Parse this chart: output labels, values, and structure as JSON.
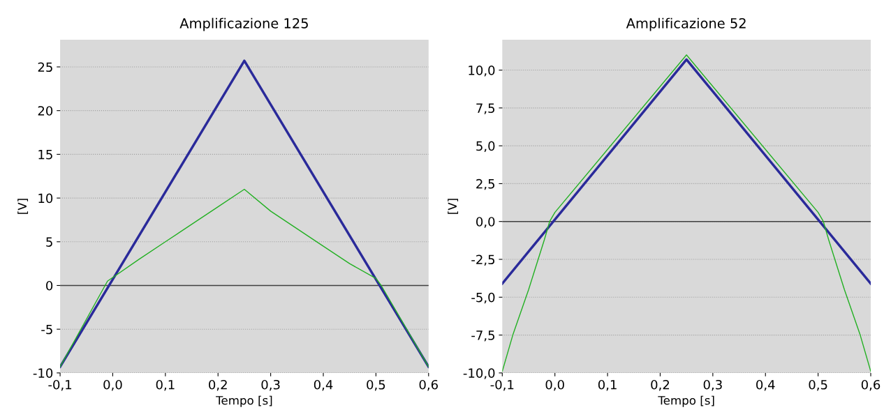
{
  "chart_data": [
    {
      "type": "line",
      "title": "Amplificazione 125",
      "xlabel": "Tempo [s]",
      "ylabel": "[V]",
      "xlim": [
        -0.1,
        0.6
      ],
      "ylim": [
        -10,
        28.1
      ],
      "xticks": [
        {
          "value": -0.1,
          "label": "-0,1"
        },
        {
          "value": 0,
          "label": "0,0"
        },
        {
          "value": 0.1,
          "label": "0,1"
        },
        {
          "value": 0.2,
          "label": "0,2"
        },
        {
          "value": 0.3,
          "label": "0,3"
        },
        {
          "value": 0.4,
          "label": "0,4"
        },
        {
          "value": 0.5,
          "label": "0,5"
        },
        {
          "value": 0.6,
          "label": "0,6"
        }
      ],
      "yticks": [
        -10,
        -5,
        0,
        5,
        10,
        15,
        20,
        25
      ],
      "grid": "y",
      "ref_lines": [
        {
          "axis": "y",
          "value": 0,
          "color": "#404040"
        }
      ],
      "series": [
        {
          "color": "#2a2a9a",
          "x": [
            -0.1,
            0.25,
            0.6
          ],
          "values": [
            -9.3,
            25.7,
            -9.3
          ]
        },
        {
          "color": "#22b022",
          "x": [
            -0.1,
            -0.01,
            0.05,
            0.1,
            0.2,
            0.25,
            0.3,
            0.4,
            0.45,
            0.5,
            0.51,
            0.6
          ],
          "values": [
            -9.3,
            0.5,
            3,
            5,
            9,
            11,
            8.5,
            4.5,
            2.5,
            0.8,
            0,
            -9.3
          ]
        }
      ]
    },
    {
      "type": "line",
      "title": "Amplificazione 52",
      "xlabel": "Tempo [s]",
      "ylabel": "[V]",
      "xlim": [
        -0.1,
        0.6
      ],
      "ylim": [
        -10,
        12
      ],
      "xticks": [
        {
          "value": -0.1,
          "label": "-0,1"
        },
        {
          "value": 0,
          "label": "0,0"
        },
        {
          "value": 0.1,
          "label": "0,1"
        },
        {
          "value": 0.2,
          "label": "0,2"
        },
        {
          "value": 0.3,
          "label": "0,3"
        },
        {
          "value": 0.4,
          "label": "0,4"
        },
        {
          "value": 0.5,
          "label": "0,5"
        },
        {
          "value": 0.6,
          "label": "0,6"
        }
      ],
      "yticks": [
        {
          "value": -10,
          "label": "-10,0"
        },
        {
          "value": -7.5,
          "label": "-7,5"
        },
        {
          "value": -5,
          "label": "-5,0"
        },
        {
          "value": -2.5,
          "label": "-2,5"
        },
        {
          "value": 0,
          "label": "0,0"
        },
        {
          "value": 2.5,
          "label": "2,5"
        },
        {
          "value": 5,
          "label": "5,0"
        },
        {
          "value": 7.5,
          "label": "7,5"
        },
        {
          "value": 10,
          "label": "10,0"
        }
      ],
      "grid": "y",
      "ref_lines": [
        {
          "axis": "y",
          "value": 0,
          "color": "#404040"
        }
      ],
      "series": [
        {
          "color": "#2a2a9a",
          "x": [
            -0.1,
            0.25,
            0.6
          ],
          "values": [
            -4.1,
            10.7,
            -4.1
          ]
        },
        {
          "color": "#22b022",
          "x": [
            -0.1,
            -0.08,
            -0.05,
            -0.02,
            -0.01,
            0,
            0.25,
            0.5,
            0.51,
            0.52,
            0.55,
            0.58,
            0.6
          ],
          "values": [
            -9.9,
            -7.5,
            -4.5,
            -1.2,
            0,
            0.6,
            11,
            0.6,
            0,
            -1.2,
            -4.5,
            -7.5,
            -9.9
          ]
        }
      ]
    }
  ]
}
